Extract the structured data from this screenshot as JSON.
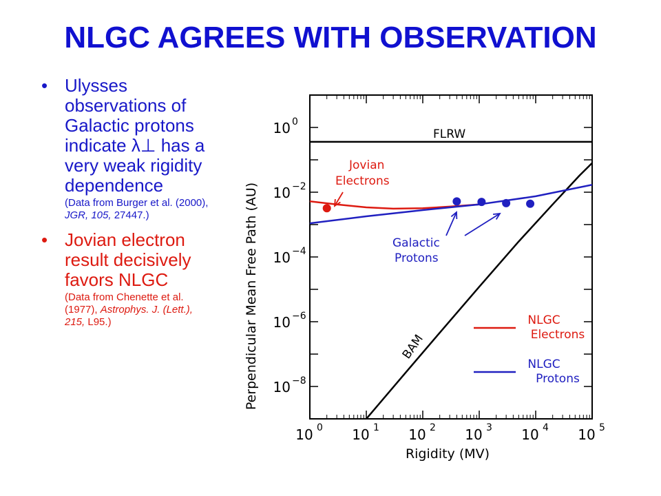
{
  "title": "NLGC AGREES WITH OBSERVATION",
  "bullets": [
    {
      "main": "Ulysses observations of Galactic protons indicate λ⊥ has a very weak rigidity dependence",
      "sub_plain": "(Data from Burger et al. (2000), ",
      "sub_italic": "JGR, 105,",
      "sub_tail": " 27447.)",
      "color": "#1818c8"
    },
    {
      "main": "Jovian electron result decisively favors NLGC",
      "sub_plain": "(Data from Chenette et al. (1977), ",
      "sub_italic": "Astrophys. J. (Lett.), 215,",
      "sub_tail": " L95.)",
      "color": "#dd1a10"
    }
  ],
  "chart_data": {
    "type": "line",
    "xlabel": "Rigidity  (MV)",
    "ylabel": "Perpendicular Mean Free Path  (AU)",
    "xscale": "log",
    "yscale": "log",
    "xlim": [
      1,
      100000
    ],
    "ylim": [
      1e-09,
      10
    ],
    "x_ticks": [
      {
        "base": "10",
        "exp": "0"
      },
      {
        "base": "10",
        "exp": "1"
      },
      {
        "base": "10",
        "exp": "2"
      },
      {
        "base": "10",
        "exp": "3"
      },
      {
        "base": "10",
        "exp": "4"
      },
      {
        "base": "10",
        "exp": "5"
      }
    ],
    "y_ticks": [
      {
        "base": "10",
        "exp": "0"
      },
      {
        "base": "10",
        "exp": "−2"
      },
      {
        "base": "10",
        "exp": "−4"
      },
      {
        "base": "10",
        "exp": "−6"
      },
      {
        "base": "10",
        "exp": "−8"
      }
    ],
    "series": [
      {
        "name": "FLRW",
        "color": "#000000",
        "x": [
          1,
          100000
        ],
        "y": [
          0.36,
          0.36
        ]
      },
      {
        "name": "BAM",
        "color": "#000000",
        "x": [
          10,
          50,
          200,
          1000,
          5000,
          20000,
          60000,
          100000
        ],
        "y": [
          1e-09,
          2.7e-08,
          4.6e-07,
          1.2e-05,
          0.0003,
          0.0042,
          0.033,
          0.08
        ]
      },
      {
        "name": "NLGC Electrons",
        "color": "#dd1a10",
        "x": [
          1,
          3,
          10,
          30,
          100,
          300,
          1000
        ],
        "y": [
          0.0052,
          0.0042,
          0.0034,
          0.0031,
          0.0032,
          0.0036,
          0.0042
        ]
      },
      {
        "name": "NLGC Protons",
        "color": "#2020c0",
        "x": [
          1,
          10,
          100,
          1000,
          10000,
          100000
        ],
        "y": [
          0.0011,
          0.0018,
          0.0028,
          0.0042,
          0.0075,
          0.017
        ]
      }
    ],
    "points": [
      {
        "series": "Jovian Electrons",
        "color": "#dd1a10",
        "x": [
          2
        ],
        "y": [
          0.0032
        ]
      },
      {
        "series": "Galactic Protons",
        "color": "#2020c0",
        "x": [
          400,
          1100,
          3000,
          8000
        ],
        "y": [
          0.0052,
          0.005,
          0.0046,
          0.0044
        ]
      }
    ],
    "annotations": [
      {
        "text": "FLRW",
        "color": "#000000"
      },
      {
        "text": "Jovian",
        "color": "#dd1a10"
      },
      {
        "text": "Electrons",
        "color": "#dd1a10"
      },
      {
        "text": "Galactic",
        "color": "#2020c0"
      },
      {
        "text": "Protons",
        "color": "#2020c0"
      },
      {
        "text": "BAM",
        "color": "#000000"
      }
    ],
    "legend": [
      {
        "label1": "NLGC",
        "label2": "Electrons",
        "color": "#dd1a10"
      },
      {
        "label1": "NLGC",
        "label2": "Protons",
        "color": "#2020c0"
      }
    ],
    "legend_placement": "bottom-right",
    "grid": false
  }
}
